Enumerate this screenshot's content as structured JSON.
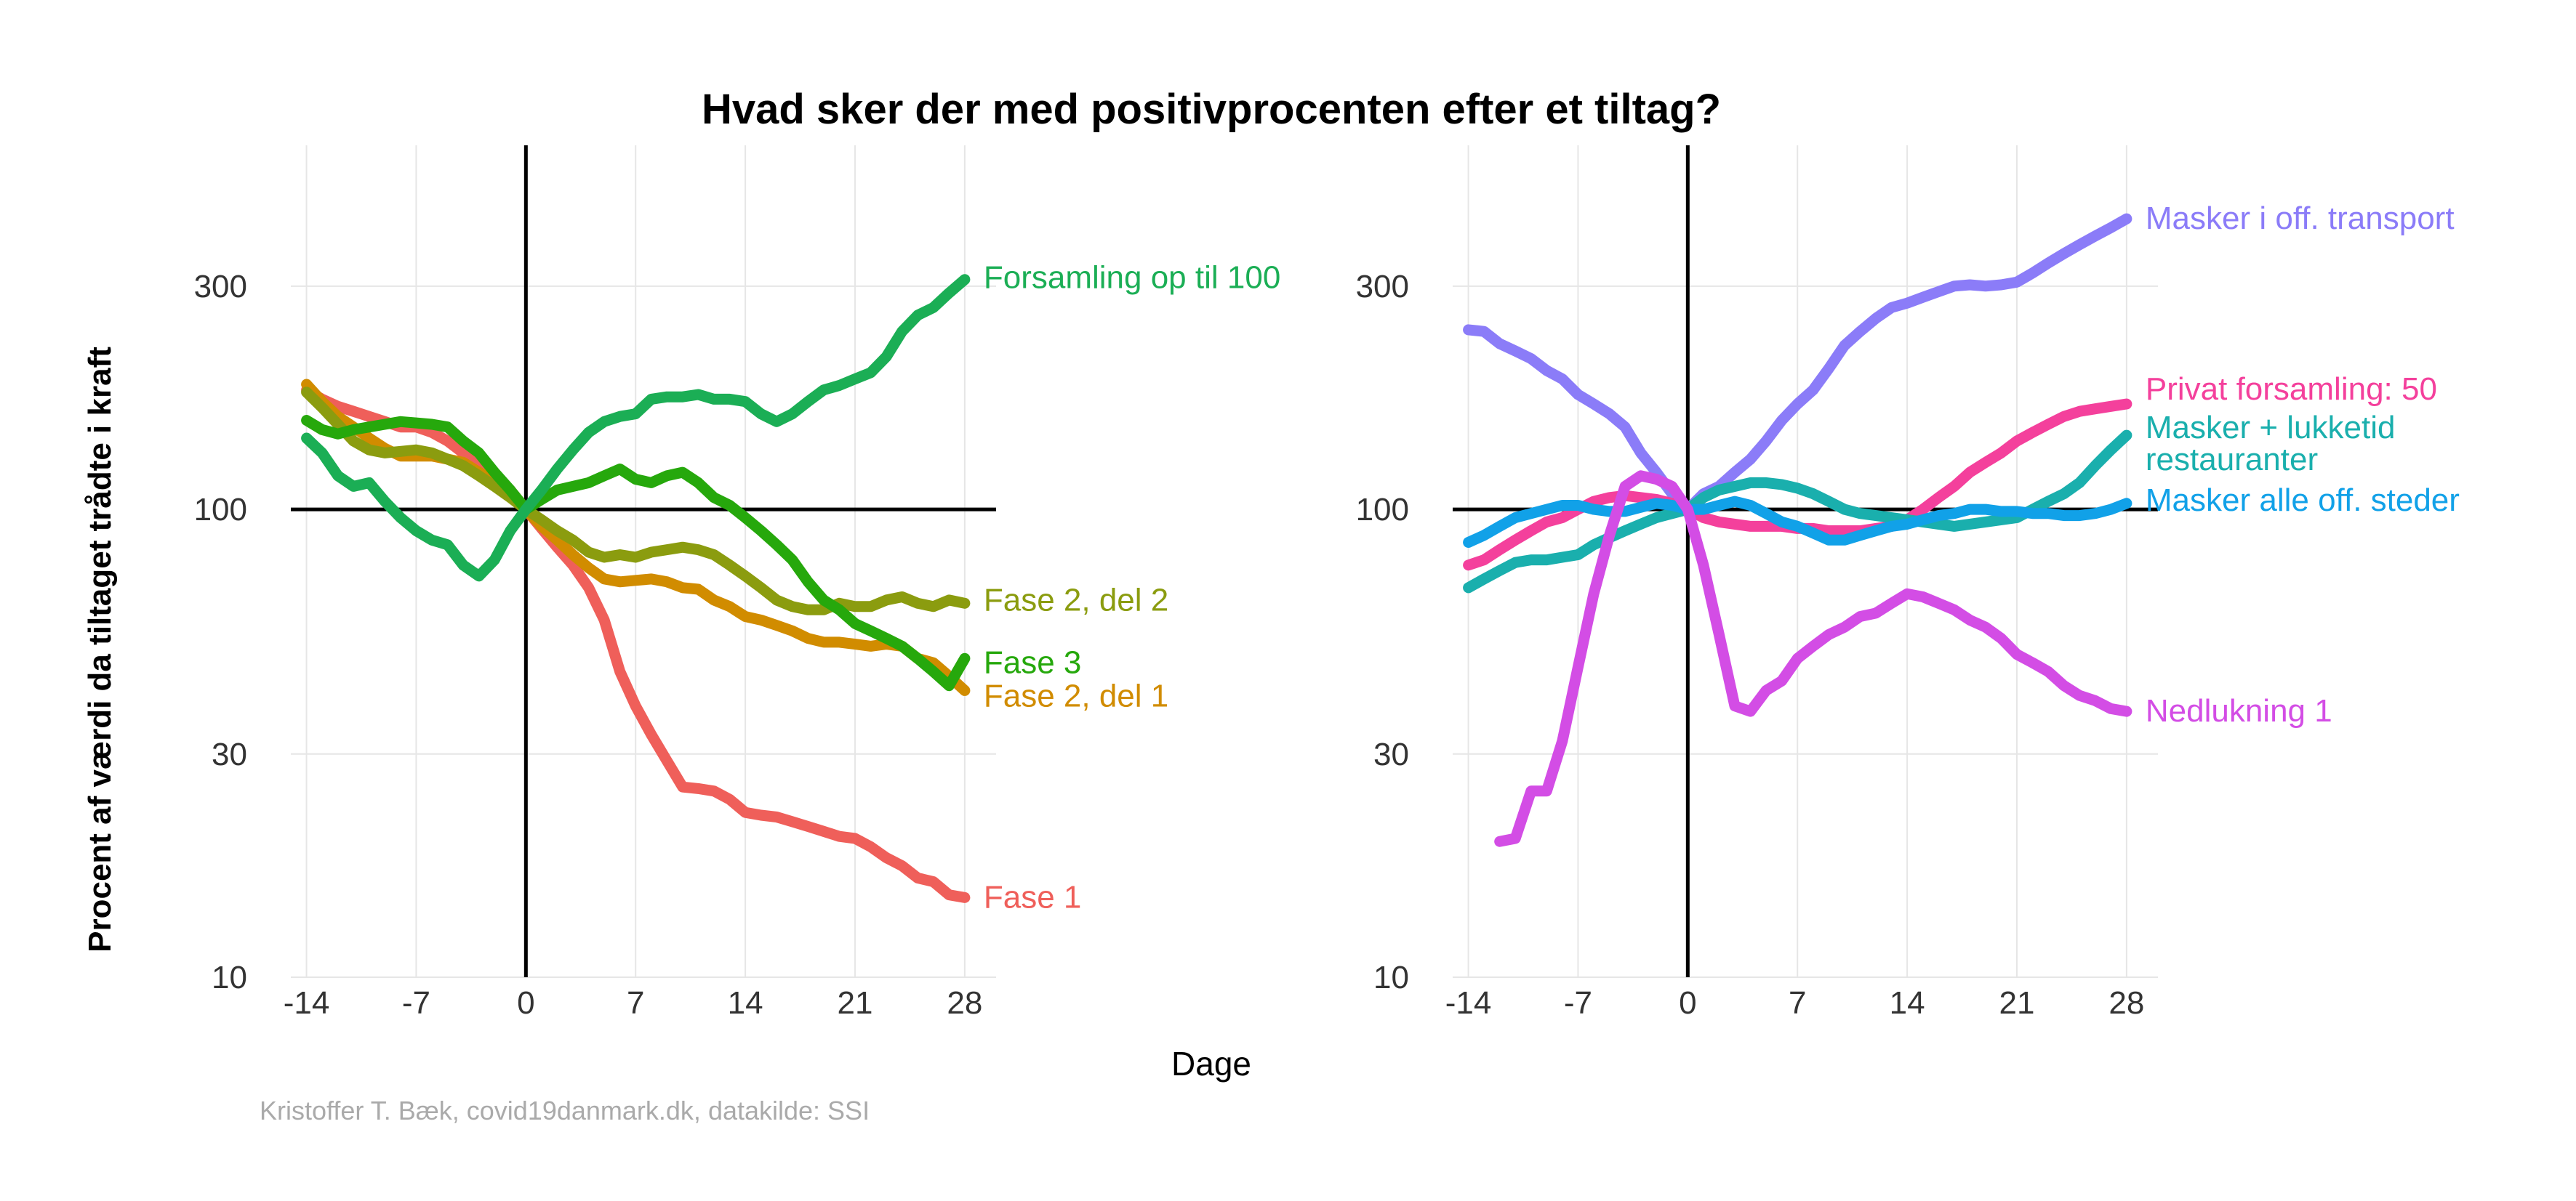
{
  "chart": {
    "title": "Hvad sker der med positivprocenten efter et tiltag?",
    "ylabel": "Procent af værdi da tiltaget trådte i kraft",
    "xlabel": "Dage",
    "caption": "Kristoffer T. Bæk, covid19danmark.dk, datakilde: SSI"
  },
  "chart_data": [
    {
      "type": "line",
      "panel": "left",
      "y_scale": "log",
      "ylim": [
        10,
        600
      ],
      "xlim": [
        -15,
        30
      ],
      "x_ticks": [
        "-14",
        "-7",
        "0",
        "7",
        "14",
        "21",
        "28"
      ],
      "y_ticks": [
        "10",
        "30",
        "100",
        "300"
      ],
      "reference_lines": {
        "x": 0,
        "y": 100
      },
      "grid": true,
      "series": [
        {
          "name": "Fase 1",
          "color": "#ef5f5a",
          "x": [
            -14,
            -13,
            -12,
            -11,
            -10,
            -9,
            -8,
            -7,
            -6,
            -5,
            -4,
            -3,
            -2,
            -1,
            0,
            1,
            2,
            3,
            4,
            5,
            6,
            7,
            8,
            9,
            10,
            11,
            12,
            13,
            14,
            15,
            16,
            17,
            18,
            19,
            20,
            21,
            22,
            23,
            24,
            25,
            26,
            27,
            28
          ],
          "y": [
            180,
            172,
            166,
            162,
            158,
            154,
            150,
            150,
            146,
            140,
            132,
            124,
            116,
            110,
            100,
            91,
            83,
            76,
            68,
            58,
            45,
            38,
            33,
            29,
            25.5,
            25.3,
            25,
            24,
            22.5,
            22.2,
            22,
            21.5,
            21,
            20.5,
            20,
            19.8,
            19,
            18,
            17.3,
            16.3,
            16,
            15,
            14.8
          ]
        },
        {
          "name": "Fase 2, del 1",
          "color": "#d18c00",
          "x": [
            -14,
            -13,
            -12,
            -11,
            -10,
            -9,
            -8,
            -7,
            -6,
            -5,
            -4,
            -3,
            -2,
            -1,
            0,
            1,
            2,
            3,
            4,
            5,
            6,
            7,
            8,
            9,
            10,
            11,
            12,
            13,
            14,
            15,
            16,
            17,
            18,
            19,
            20,
            21,
            22,
            23,
            24,
            25,
            26,
            27,
            28
          ],
          "y": [
            185,
            170,
            158,
            150,
            142,
            135,
            130,
            130,
            130,
            128,
            126,
            120,
            115,
            108,
            100,
            92,
            86,
            80,
            75,
            71,
            70,
            70.5,
            71,
            70,
            68,
            67.5,
            64,
            62,
            59,
            58,
            56.5,
            55,
            53,
            52,
            52,
            51.5,
            51,
            51.5,
            51,
            48,
            47,
            44,
            41
          ]
        },
        {
          "name": "Fase 2, del 2",
          "color": "#8b9c0f",
          "x": [
            -14,
            -13,
            -12,
            -11,
            -10,
            -9,
            -8,
            -7,
            -6,
            -5,
            -4,
            -3,
            -2,
            -1,
            0,
            1,
            2,
            3,
            4,
            5,
            6,
            7,
            8,
            9,
            10,
            11,
            12,
            13,
            14,
            15,
            16,
            17,
            18,
            19,
            20,
            21,
            22,
            23,
            24,
            25,
            26,
            27,
            28
          ],
          "y": [
            178,
            165,
            152,
            140,
            134,
            132,
            133,
            134,
            132,
            128,
            124,
            118,
            112,
            106,
            100,
            95,
            90,
            86,
            81,
            79,
            80,
            79,
            81,
            82,
            83,
            82,
            80,
            76,
            72,
            68,
            64,
            62,
            61,
            61,
            63,
            62,
            62,
            64,
            65,
            63,
            62,
            64,
            63
          ]
        },
        {
          "name": "Fase 3",
          "color": "#26a80c",
          "x": [
            -14,
            -13,
            -12,
            -11,
            -10,
            -9,
            -8,
            -7,
            -6,
            -5,
            -4,
            -3,
            -2,
            -1,
            0,
            1,
            2,
            3,
            4,
            5,
            6,
            7,
            8,
            9,
            10,
            11,
            12,
            13,
            14,
            15,
            16,
            17,
            18,
            19,
            20,
            21,
            22,
            23,
            24,
            25,
            26,
            27,
            28
          ],
          "y": [
            155,
            148,
            145,
            148,
            150,
            152,
            154,
            153,
            152,
            150,
            140,
            132,
            120,
            110,
            100,
            105,
            110,
            112,
            114,
            118,
            122,
            116,
            114,
            118,
            120,
            114,
            106,
            102,
            96,
            90,
            84,
            78,
            70,
            64,
            61,
            57,
            55,
            53,
            51,
            48,
            45,
            42,
            48
          ]
        },
        {
          "name": "Forsamling op til 100",
          "color": "#1bae55",
          "x": [
            -14,
            -13,
            -12,
            -11,
            -10,
            -9,
            -8,
            -7,
            -6,
            -5,
            -4,
            -3,
            -2,
            -1,
            0,
            1,
            2,
            3,
            4,
            5,
            6,
            7,
            8,
            9,
            10,
            11,
            12,
            13,
            14,
            15,
            16,
            17,
            18,
            19,
            20,
            21,
            22,
            23,
            24,
            25,
            26,
            27,
            28
          ],
          "y": [
            142,
            132,
            118,
            112,
            114,
            104,
            96,
            90,
            86,
            84,
            76,
            72,
            78,
            90,
            100,
            110,
            122,
            134,
            146,
            154,
            158,
            160,
            172,
            174,
            174,
            176,
            172,
            172,
            170,
            160,
            154,
            160,
            170,
            180,
            184,
            190,
            196,
            212,
            240,
            260,
            270,
            290,
            310
          ]
        }
      ]
    },
    {
      "type": "line",
      "panel": "right",
      "y_scale": "log",
      "ylim": [
        10,
        600
      ],
      "xlim": [
        -15,
        30
      ],
      "x_ticks": [
        "-14",
        "-7",
        "0",
        "7",
        "14",
        "21",
        "28"
      ],
      "y_ticks": [
        "10",
        "30",
        "100",
        "300"
      ],
      "reference_lines": {
        "x": 0,
        "y": 100
      },
      "grid": true,
      "series": [
        {
          "name": "Masker i off. transport",
          "color": "#8b7cf8",
          "x": [
            -14,
            -13,
            -12,
            -11,
            -10,
            -9,
            -8,
            -7,
            -6,
            -5,
            -4,
            -3,
            -2,
            -1,
            0,
            1,
            2,
            3,
            4,
            5,
            6,
            7,
            8,
            9,
            10,
            11,
            12,
            13,
            14,
            15,
            16,
            17,
            18,
            19,
            20,
            21,
            22,
            23,
            24,
            25,
            26,
            27,
            28
          ],
          "y": [
            242,
            240,
            226,
            218,
            210,
            198,
            190,
            176,
            168,
            160,
            150,
            132,
            120,
            108,
            100,
            108,
            112,
            120,
            128,
            140,
            155,
            168,
            180,
            200,
            224,
            240,
            256,
            270,
            276,
            284,
            292,
            300,
            302,
            300,
            302,
            306,
            320,
            336,
            352,
            368,
            384,
            400,
            418
          ]
        },
        {
          "name": "Privat forsamling: 50",
          "color": "#f4409c",
          "x": [
            -14,
            -13,
            -12,
            -11,
            -10,
            -9,
            -8,
            -7,
            -6,
            -5,
            -4,
            -3,
            -2,
            -1,
            0,
            1,
            2,
            3,
            4,
            5,
            6,
            7,
            8,
            9,
            10,
            11,
            12,
            13,
            14,
            15,
            16,
            17,
            18,
            19,
            20,
            21,
            22,
            23,
            24,
            25,
            26,
            27,
            28
          ],
          "y": [
            76,
            78,
            82,
            86,
            90,
            94,
            96,
            100,
            104,
            106,
            107,
            106,
            105,
            103,
            100,
            96,
            94,
            93,
            92,
            92,
            92,
            91,
            91,
            90,
            90,
            90,
            91,
            92,
            95,
            100,
            106,
            112,
            120,
            126,
            132,
            140,
            146,
            152,
            158,
            162,
            164,
            166,
            168
          ]
        },
        {
          "name": "Masker + lukketid restauranter",
          "color": "#1aafad",
          "x": [
            -14,
            -13,
            -12,
            -11,
            -10,
            -9,
            -8,
            -7,
            -6,
            -5,
            -4,
            -3,
            -2,
            -1,
            0,
            1,
            2,
            3,
            4,
            5,
            6,
            7,
            8,
            9,
            10,
            11,
            12,
            13,
            14,
            15,
            16,
            17,
            18,
            19,
            20,
            21,
            22,
            23,
            24,
            25,
            26,
            27,
            28
          ],
          "y": [
            68,
            71,
            74,
            77,
            78,
            78,
            79,
            80,
            84,
            87,
            90,
            93,
            96,
            98,
            100,
            106,
            110,
            112,
            114,
            114,
            113,
            111,
            108,
            104,
            100,
            98,
            97,
            96,
            95,
            94,
            93,
            92,
            93,
            94,
            95,
            96,
            100,
            104,
            108,
            114,
            124,
            134,
            144
          ]
        },
        {
          "name": "Masker alle off. steder",
          "color": "#11a1e8",
          "x": [
            -14,
            -13,
            -12,
            -11,
            -10,
            -9,
            -8,
            -7,
            -6,
            -5,
            -4,
            -3,
            -2,
            -1,
            0,
            1,
            2,
            3,
            4,
            5,
            6,
            7,
            8,
            9,
            10,
            11,
            12,
            13,
            14,
            15,
            16,
            17,
            18,
            19,
            20,
            21,
            22,
            23,
            24,
            25,
            26,
            27,
            28
          ],
          "y": [
            85,
            88,
            92,
            96,
            98,
            100,
            102,
            102,
            100,
            99,
            99,
            101,
            103,
            102,
            100,
            100,
            102,
            104,
            102,
            98,
            94,
            92,
            89,
            86,
            86,
            88,
            90,
            92,
            93,
            95,
            97,
            98,
            100,
            100,
            99,
            99,
            98,
            98,
            97,
            97,
            98,
            100,
            103
          ]
        },
        {
          "name": "Nedlukning 1",
          "color": "#d34de5",
          "x": [
            -14,
            -13,
            -12,
            -11,
            -10,
            -9,
            -8,
            -7,
            -6,
            -5,
            -4,
            -3,
            -2,
            -1,
            0,
            1,
            2,
            3,
            4,
            5,
            6,
            7,
            8,
            9,
            10,
            11,
            12,
            13,
            14,
            15,
            16,
            17,
            18,
            19,
            20,
            21,
            22,
            23,
            24,
            25,
            26,
            27,
            28
          ],
          "y": [
            null,
            null,
            19.5,
            19.8,
            25,
            25,
            32,
            46,
            66,
            88,
            112,
            118,
            116,
            112,
            100,
            76,
            54,
            38,
            37,
            41,
            43,
            48,
            51,
            54,
            56,
            59,
            60,
            63,
            66,
            65,
            63,
            61,
            58,
            56,
            53,
            49,
            47,
            45,
            42,
            40,
            39,
            37.5,
            37
          ]
        }
      ]
    }
  ]
}
